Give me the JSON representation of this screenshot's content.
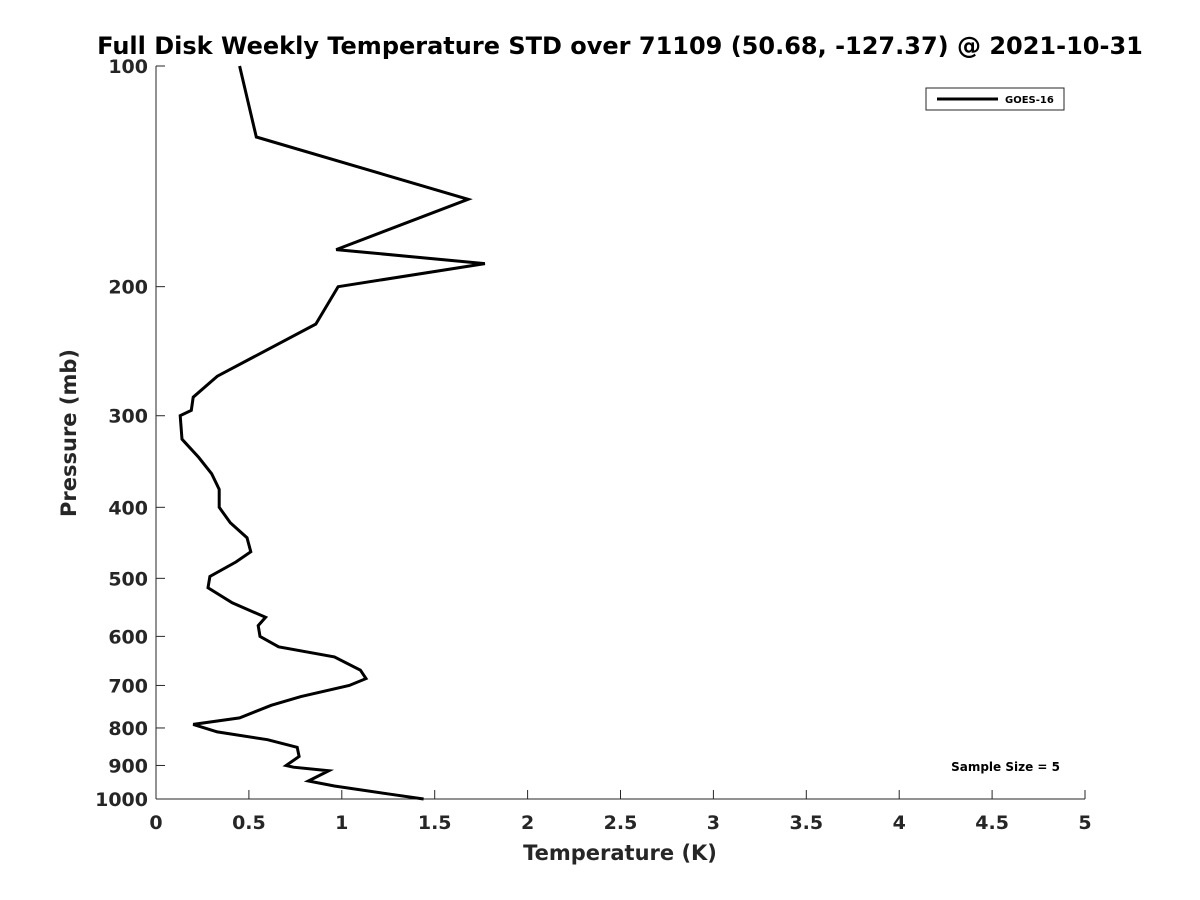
{
  "chart_data": {
    "type": "line",
    "title": "Full Disk Weekly Temperature STD over 71109 (50.68, -127.37) @ 2021-10-31",
    "xlabel": "Temperature (K)",
    "ylabel": "Pressure (mb)",
    "xlim": [
      0,
      5
    ],
    "ylim": [
      100,
      1000
    ],
    "y_scale": "log",
    "y_reversed": true,
    "x_ticks": [
      "0",
      "0.5",
      "1",
      "1.5",
      "2",
      "2.5",
      "3",
      "3.5",
      "4",
      "4.5",
      "5"
    ],
    "y_ticks": [
      "100",
      "200",
      "300",
      "400",
      "500",
      "600",
      "700",
      "800",
      "900",
      "1000"
    ],
    "grid": false,
    "legend_position": "top-right",
    "annotation": "Sample Size = 5",
    "series": [
      {
        "name": "GOES-16",
        "color": "#000000",
        "points": [
          [
            0.45,
            100
          ],
          [
            0.54,
            125
          ],
          [
            1.68,
            152
          ],
          [
            0.97,
            178
          ],
          [
            1.77,
            186
          ],
          [
            0.98,
            200
          ],
          [
            0.86,
            225
          ],
          [
            0.33,
            265
          ],
          [
            0.2,
            283
          ],
          [
            0.19,
            295
          ],
          [
            0.13,
            300
          ],
          [
            0.14,
            323
          ],
          [
            0.23,
            342
          ],
          [
            0.3,
            360
          ],
          [
            0.34,
            378
          ],
          [
            0.34,
            400
          ],
          [
            0.4,
            420
          ],
          [
            0.49,
            440
          ],
          [
            0.51,
            460
          ],
          [
            0.43,
            475
          ],
          [
            0.29,
            497
          ],
          [
            0.28,
            515
          ],
          [
            0.41,
            540
          ],
          [
            0.59,
            565
          ],
          [
            0.55,
            580
          ],
          [
            0.56,
            600
          ],
          [
            0.66,
            620
          ],
          [
            0.96,
            640
          ],
          [
            1.1,
            667
          ],
          [
            1.13,
            685
          ],
          [
            1.04,
            700
          ],
          [
            0.78,
            725
          ],
          [
            0.62,
            745
          ],
          [
            0.45,
            775
          ],
          [
            0.2,
            791
          ],
          [
            0.33,
            810
          ],
          [
            0.6,
            830
          ],
          [
            0.76,
            850
          ],
          [
            0.77,
            875
          ],
          [
            0.7,
            900
          ],
          [
            0.74,
            905
          ],
          [
            0.93,
            915
          ],
          [
            0.82,
            945
          ],
          [
            0.96,
            960
          ],
          [
            1.26,
            985
          ],
          [
            1.44,
            1000
          ]
        ]
      }
    ]
  }
}
